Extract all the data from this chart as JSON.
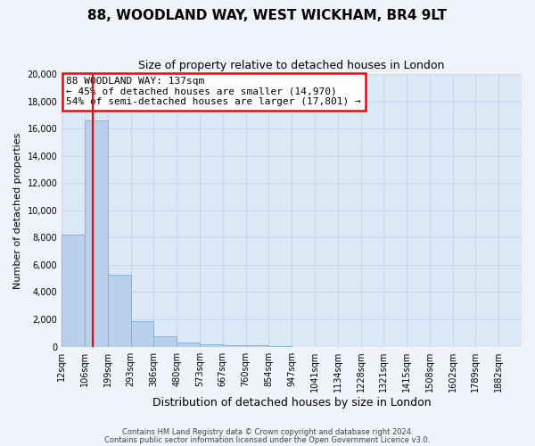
{
  "title": "88, WOODLAND WAY, WEST WICKHAM, BR4 9LT",
  "subtitle": "Size of property relative to detached houses in London",
  "xlabel": "Distribution of detached houses by size in London",
  "ylabel": "Number of detached properties",
  "bar_values": [
    8200,
    16600,
    5300,
    1850,
    750,
    300,
    175,
    100,
    75,
    50,
    0,
    0,
    0,
    0,
    0,
    0,
    0,
    0,
    0,
    0
  ],
  "bar_labels": [
    "12sqm",
    "106sqm",
    "199sqm",
    "293sqm",
    "386sqm",
    "480sqm",
    "573sqm",
    "667sqm",
    "760sqm",
    "854sqm",
    "947sqm",
    "1041sqm",
    "1134sqm",
    "1228sqm",
    "1321sqm",
    "1415sqm",
    "1508sqm",
    "1602sqm",
    "1789sqm",
    "1882sqm"
  ],
  "bar_color": "#b8d0eb",
  "bar_edge_color": "#7aafd4",
  "grid_color": "#c8d8ec",
  "bg_color": "#dce8f5",
  "fig_bg_color": "#f0f4fa",
  "annotation_line1": "88 WOODLAND WAY: 137sqm",
  "annotation_line2": "← 45% of detached houses are smaller (14,970)",
  "annotation_line3": "54% of semi-detached houses are larger (17,801) →",
  "vline_color": "red",
  "ylim": [
    0,
    20000
  ],
  "yticks": [
    0,
    2000,
    4000,
    6000,
    8000,
    10000,
    12000,
    14000,
    16000,
    18000,
    20000
  ],
  "footer1": "Contains HM Land Registry data © Crown copyright and database right 2024.",
  "footer2": "Contains public sector information licensed under the Open Government Licence v3.0."
}
